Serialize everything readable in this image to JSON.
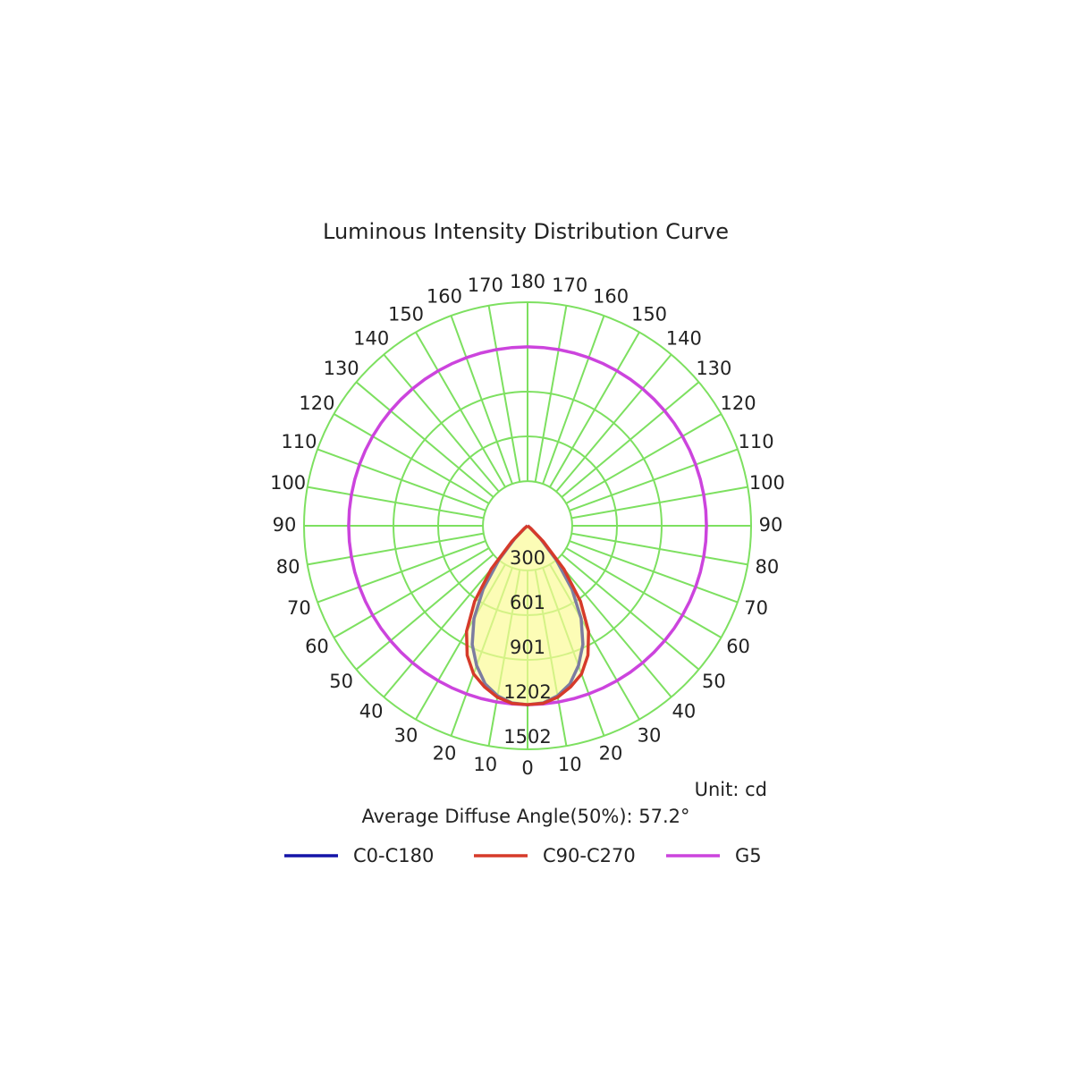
{
  "chart_data": {
    "type": "polar",
    "title": "Luminous Intensity Distribution Curve",
    "unit_label": "Unit: cd",
    "annotation": "Average Diffuse Angle(50%): 57.2°",
    "rlim": [
      0,
      1502
    ],
    "rticks": [
      300,
      601,
      901,
      1202,
      1502
    ],
    "angle_ticks": [
      0,
      10,
      20,
      30,
      40,
      50,
      60,
      70,
      80,
      90,
      100,
      110,
      120,
      130,
      140,
      150,
      160,
      170,
      180
    ],
    "angles": [
      0,
      5,
      10,
      15,
      20,
      25,
      30,
      35,
      40,
      45,
      50,
      55,
      60,
      65,
      70,
      75,
      80,
      85,
      90,
      95,
      100,
      105,
      110,
      115,
      120,
      125,
      130,
      135,
      140,
      145,
      150,
      155,
      160,
      165,
      170,
      175,
      180
    ],
    "series": [
      {
        "name": "C0-C180",
        "color": "#1414a8",
        "values": [
          1202,
          1195,
          1160,
          1100,
          1000,
          880,
          720,
          520,
          300,
          120,
          20,
          0,
          0,
          0,
          0,
          0,
          0,
          0,
          0,
          0,
          0,
          0,
          0,
          0,
          0,
          0,
          0,
          0,
          0,
          0,
          0,
          0,
          0,
          0,
          0,
          0,
          0
        ]
      },
      {
        "name": "C90-C270",
        "color": "#d63a2a",
        "values": [
          1202,
          1198,
          1170,
          1120,
          1060,
          960,
          820,
          620,
          380,
          150,
          30,
          0,
          0,
          0,
          0,
          0,
          0,
          0,
          0,
          0,
          0,
          0,
          0,
          0,
          0,
          0,
          0,
          0,
          0,
          0,
          0,
          0,
          0,
          0,
          0,
          0,
          0
        ]
      },
      {
        "name": "G5",
        "color": "#cc44dd",
        "values": [
          1202,
          1202,
          1202,
          1202,
          1202,
          1202,
          1202,
          1202,
          1202,
          1202,
          1202,
          1202,
          1202,
          1202,
          1202,
          1202,
          1202,
          1202,
          1202,
          1202,
          1202,
          1202,
          1202,
          1202,
          1202,
          1202,
          1202,
          1202,
          1202,
          1202,
          1202,
          1202,
          1202,
          1202,
          1202,
          1202,
          1202
        ]
      }
    ]
  }
}
